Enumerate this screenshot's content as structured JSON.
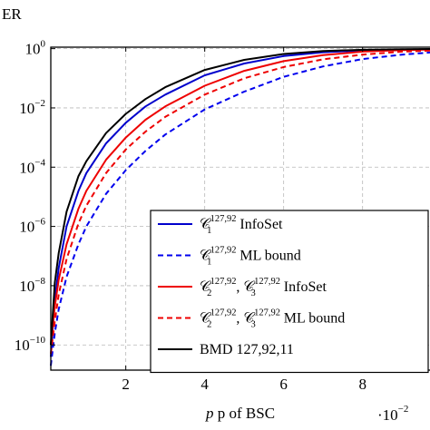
{
  "chart_data": {
    "type": "line",
    "title": "",
    "ylabel_visible": "ER",
    "xlabel": "p of BSC",
    "x_scale_label": "·10",
    "x_scale_exponent": "−2",
    "yscale": "log",
    "xlim": [
      0.1,
      9.8
    ],
    "ylim_exponent": [
      -10.85,
      0.05
    ],
    "grid": true,
    "grid_style": "dashed",
    "xticks": [
      {
        "value": 2,
        "label": "2"
      },
      {
        "value": 4,
        "label": "4"
      },
      {
        "value": 6,
        "label": "6"
      },
      {
        "value": 8,
        "label": "8"
      }
    ],
    "yticks": [
      {
        "exp": 0,
        "base": "10",
        "sup": "0"
      },
      {
        "exp": -2,
        "base": "10",
        "sup": "−2"
      },
      {
        "exp": -4,
        "base": "10",
        "sup": "−4"
      },
      {
        "exp": -6,
        "base": "10",
        "sup": "−6"
      },
      {
        "exp": -8,
        "base": "10",
        "sup": "−8"
      },
      {
        "exp": -10,
        "base": "10",
        "sup": "−10"
      }
    ],
    "legend_position": "lower-right",
    "series": [
      {
        "legend": {
          "parts": [
            {
              "t": "𝒞"
            },
            {
              "t": "127,92",
              "sup": true
            },
            {
              "t": "1",
              "sub": true
            },
            {
              "t": " InfoSet"
            }
          ]
        },
        "color": "#0000cc",
        "dash": "solid",
        "x": [
          0.1,
          0.2,
          0.3,
          0.5,
          0.8,
          1.0,
          1.5,
          2.0,
          2.5,
          3.0,
          4.0,
          5.0,
          6.0,
          7.0,
          8.0,
          9.0,
          9.8
        ],
        "y_exp": [
          -10.4,
          -8.5,
          -7.4,
          -6.0,
          -4.8,
          -4.2,
          -3.2,
          -2.5,
          -1.95,
          -1.55,
          -0.9,
          -0.5,
          -0.25,
          -0.12,
          -0.06,
          -0.03,
          -0.02
        ]
      },
      {
        "legend": {
          "parts": [
            {
              "t": "𝒞"
            },
            {
              "t": "127,92",
              "sup": true
            },
            {
              "t": "1",
              "sub": true
            },
            {
              "t": " ML bound"
            }
          ]
        },
        "color": "#0000ee",
        "dash": "dashed",
        "x": [
          0.1,
          0.2,
          0.3,
          0.5,
          0.8,
          1.0,
          1.5,
          2.0,
          2.5,
          3.0,
          4.0,
          5.0,
          6.0,
          7.0,
          8.0,
          9.0,
          9.8
        ],
        "y_exp": [
          -10.7,
          -9.6,
          -8.8,
          -7.7,
          -6.6,
          -6.0,
          -4.9,
          -4.1,
          -3.45,
          -2.9,
          -2.05,
          -1.45,
          -0.95,
          -0.6,
          -0.35,
          -0.2,
          -0.12
        ]
      },
      {
        "legend": {
          "parts": [
            {
              "t": "𝒞"
            },
            {
              "t": "127,92",
              "sup": true
            },
            {
              "t": "2",
              "sub": true
            },
            {
              "t": ", 𝒞"
            },
            {
              "t": "127,92",
              "sup": true
            },
            {
              "t": "3",
              "sub": true
            },
            {
              "t": " InfoSet"
            }
          ]
        },
        "color": "#ee0000",
        "dash": "solid",
        "x": [
          0.1,
          0.2,
          0.3,
          0.5,
          0.8,
          1.0,
          1.5,
          2.0,
          2.5,
          3.0,
          4.0,
          5.0,
          6.0,
          7.0,
          8.0,
          9.0,
          9.8
        ],
        "y_exp": [
          -10.0,
          -8.7,
          -7.8,
          -6.6,
          -5.4,
          -4.8,
          -3.75,
          -3.0,
          -2.4,
          -1.95,
          -1.25,
          -0.75,
          -0.42,
          -0.22,
          -0.1,
          -0.05,
          -0.03
        ]
      },
      {
        "legend": {
          "parts": [
            {
              "t": "𝒞"
            },
            {
              "t": "127,92",
              "sup": true
            },
            {
              "t": "2",
              "sub": true
            },
            {
              "t": ", 𝒞"
            },
            {
              "t": "127,92",
              "sup": true
            },
            {
              "t": "3",
              "sub": true
            },
            {
              "t": " ML bound"
            }
          ]
        },
        "color": "#ee0000",
        "dash": "dashed",
        "x": [
          0.1,
          0.2,
          0.3,
          0.5,
          0.8,
          1.0,
          1.5,
          2.0,
          2.5,
          3.0,
          4.0,
          5.0,
          6.0,
          7.0,
          8.0,
          9.0,
          9.8
        ],
        "y_exp": [
          -10.3,
          -9.2,
          -8.3,
          -7.1,
          -5.9,
          -5.3,
          -4.2,
          -3.4,
          -2.8,
          -2.3,
          -1.55,
          -1.0,
          -0.62,
          -0.36,
          -0.2,
          -0.1,
          -0.06
        ]
      },
      {
        "legend": {
          "parts": [
            {
              "t": "BMD 127,92,11"
            }
          ]
        },
        "color": "#000000",
        "dash": "solid",
        "x": [
          0.1,
          0.2,
          0.3,
          0.5,
          0.8,
          1.0,
          1.5,
          2.0,
          2.5,
          3.0,
          4.0,
          5.0,
          6.0,
          7.0,
          8.0,
          9.0,
          9.8
        ],
        "y_exp": [
          -10.0,
          -7.9,
          -6.9,
          -5.5,
          -4.3,
          -3.8,
          -2.85,
          -2.2,
          -1.7,
          -1.3,
          -0.72,
          -0.38,
          -0.18,
          -0.08,
          -0.04,
          -0.02,
          -0.01
        ]
      }
    ]
  }
}
